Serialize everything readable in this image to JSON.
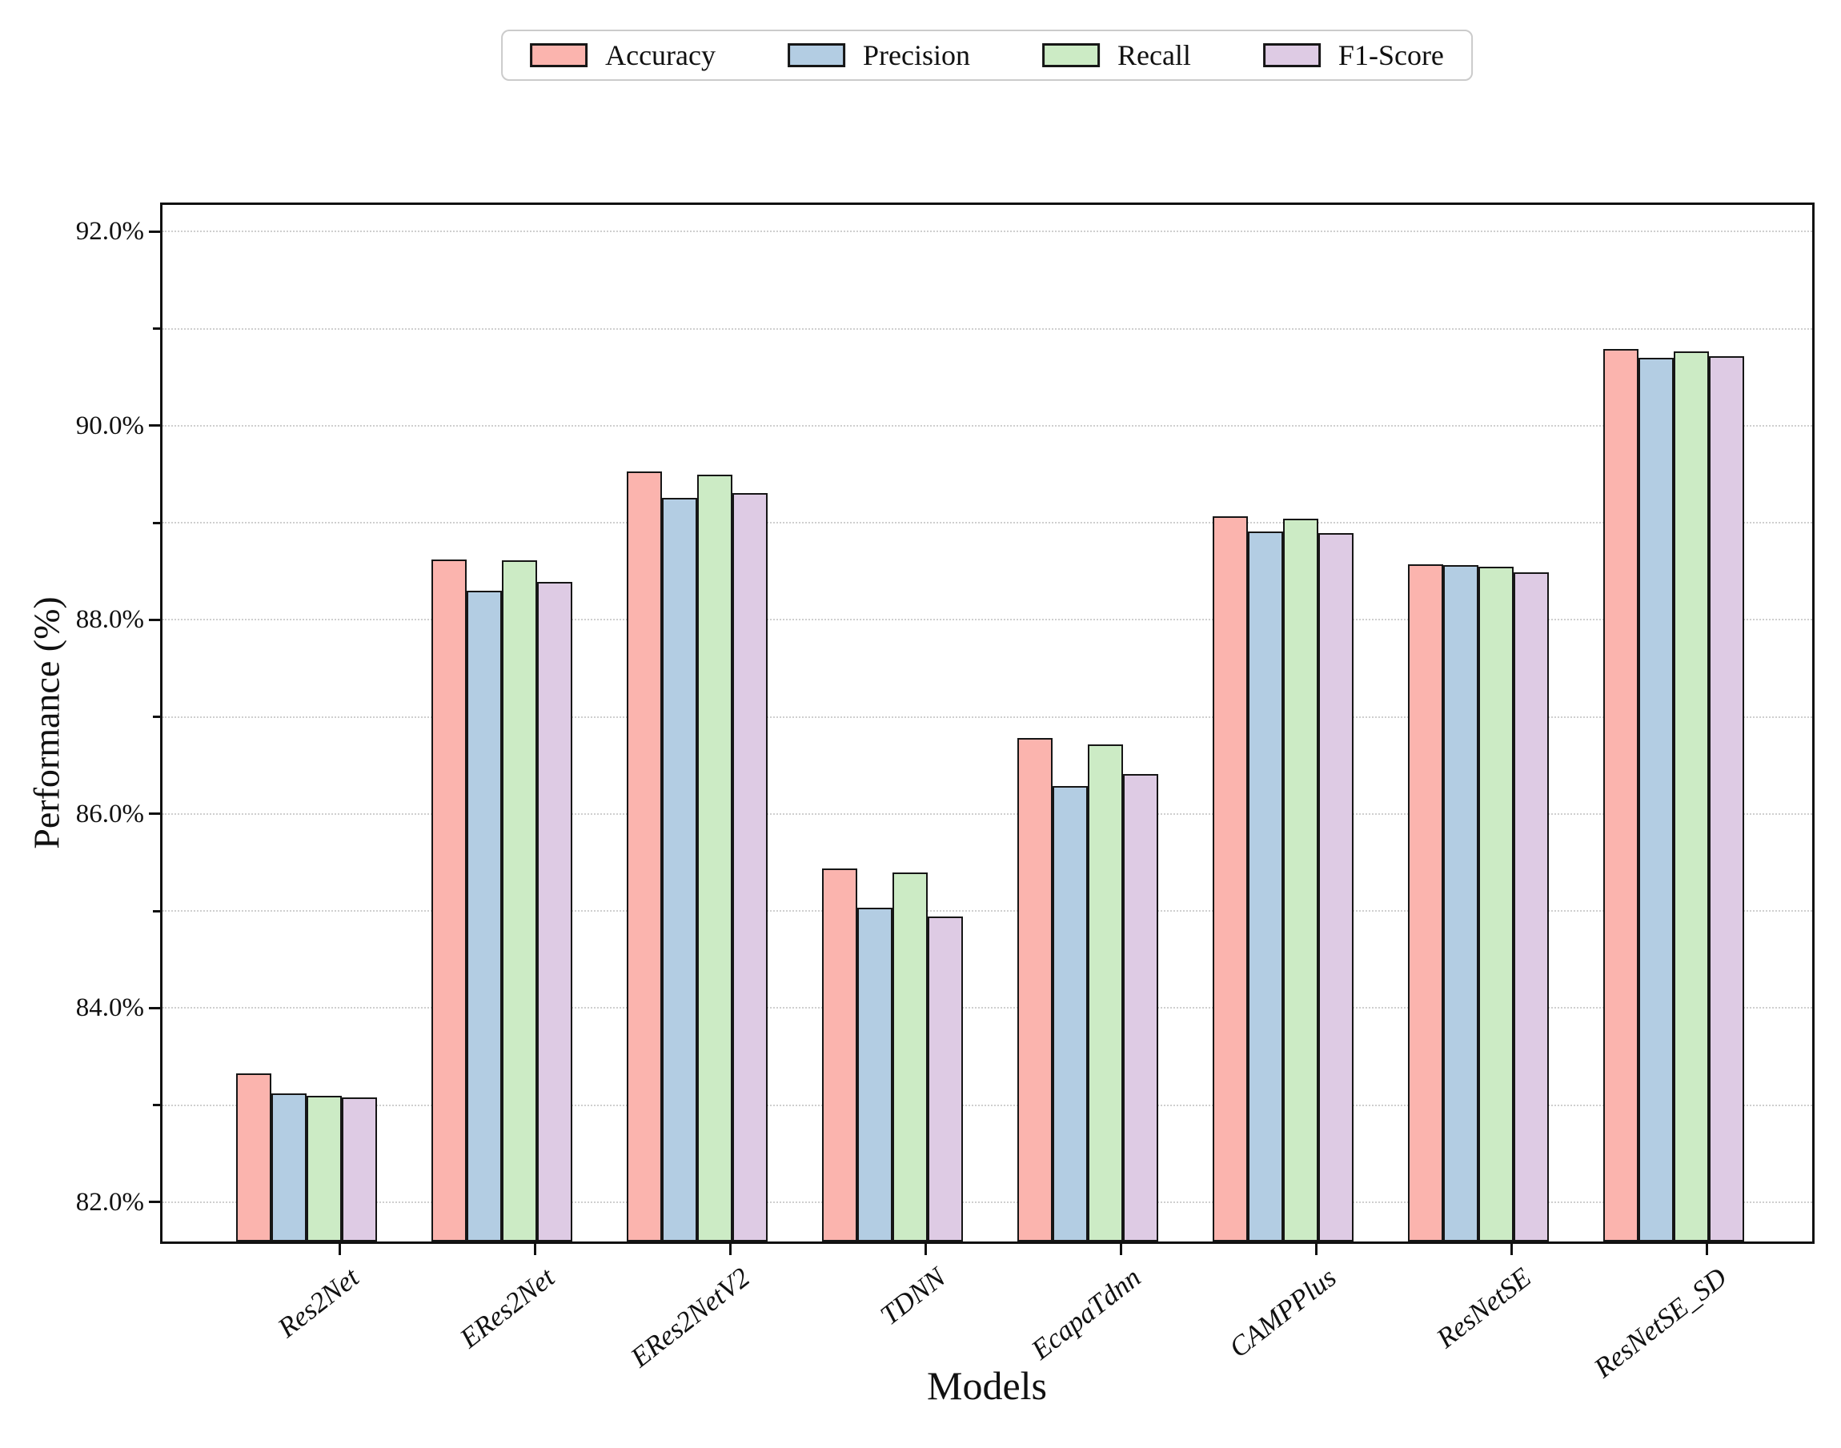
{
  "chart_data": {
    "type": "bar",
    "title": "",
    "xlabel": "Models",
    "ylabel": "Performance (%)",
    "categories": [
      "Res2Net",
      "ERes2Net",
      "ERes2NetV2",
      "TDNN",
      "EcapaTdnn",
      "CAMPPlus",
      "ResNetSE",
      "ResNetSE_SD"
    ],
    "series": [
      {
        "name": "Accuracy",
        "color": "#FBB4AE",
        "values": [
          83.33,
          88.62,
          89.53,
          85.44,
          86.78,
          89.07,
          88.57,
          90.79
        ]
      },
      {
        "name": "Precision",
        "color": "#B3CDE3",
        "values": [
          83.12,
          88.3,
          89.26,
          85.03,
          86.29,
          88.91,
          88.56,
          90.7
        ]
      },
      {
        "name": "Recall",
        "color": "#CCEBC5",
        "values": [
          83.1,
          88.61,
          89.5,
          85.4,
          86.72,
          89.04,
          88.55,
          90.77
        ]
      },
      {
        "name": "F1-Score",
        "color": "#DECBE4",
        "values": [
          83.08,
          88.39,
          89.31,
          84.94,
          86.41,
          88.89,
          88.49,
          90.72
        ]
      }
    ],
    "y_axis": {
      "min": 81.57,
      "max": 92.3,
      "major_ticks": [
        82,
        84,
        86,
        88,
        90,
        92
      ],
      "major_tick_labels": [
        "82.0%",
        "84.0%",
        "86.0%",
        "88.0%",
        "90.0%",
        "92.0%"
      ],
      "minor_ticks": [
        83,
        85,
        87,
        89,
        91
      ]
    },
    "grid": "horizontal dotted lines at every 1%",
    "legend_position": "top center",
    "styles": {
      "bar_edge_color": "#161616",
      "grid_color": "#cfcfcf",
      "axis_color": "#111111",
      "legend_border_color": "#cbcbcb",
      "background": "#ffffff"
    }
  }
}
